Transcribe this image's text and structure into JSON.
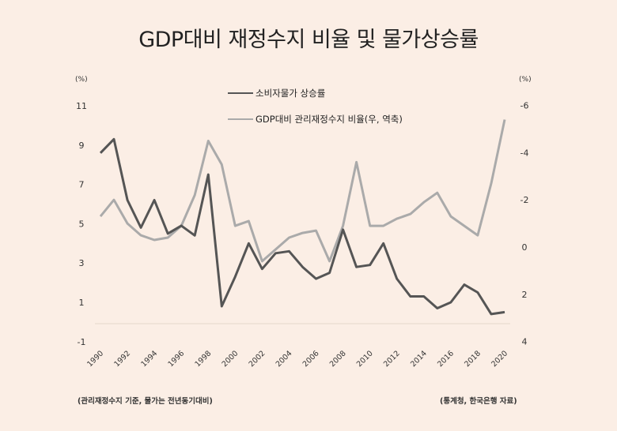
{
  "chart_data": {
    "type": "line",
    "title": "GDP대비 재정수지 비율 및 물가상승률",
    "left_axis": {
      "unit": "(%)",
      "ticks": [
        11,
        9,
        7,
        5,
        3,
        1,
        -1
      ],
      "range": [
        -1,
        11
      ]
    },
    "right_axis": {
      "unit": "(%)",
      "ticks": [
        -6,
        -4,
        -2,
        0,
        2,
        4
      ],
      "range": [
        -6,
        4
      ],
      "inverted": true
    },
    "x_ticks": [
      "1990",
      "1992",
      "1994",
      "1996",
      "1998",
      "2000",
      "2002",
      "2004",
      "2006",
      "2008",
      "2010",
      "2012",
      "2014",
      "2016",
      "2018",
      "2020"
    ],
    "x": [
      1990,
      1991,
      1992,
      1993,
      1994,
      1995,
      1996,
      1997,
      1998,
      1999,
      2000,
      2001,
      2002,
      2003,
      2004,
      2005,
      2006,
      2007,
      2008,
      2009,
      2010,
      2011,
      2012,
      2013,
      2014,
      2015,
      2016,
      2017,
      2018,
      2019,
      2020
    ],
    "series": [
      {
        "name": "소비자물가 상승률",
        "axis": "left",
        "color": "#555555",
        "values": [
          8.6,
          9.3,
          6.2,
          4.8,
          6.2,
          4.5,
          4.9,
          4.4,
          7.5,
          0.8,
          2.3,
          4.0,
          2.7,
          3.5,
          3.6,
          2.8,
          2.2,
          2.5,
          4.7,
          2.8,
          2.9,
          4.0,
          2.2,
          1.3,
          1.3,
          0.7,
          1.0,
          1.9,
          1.5,
          0.4,
          0.5
        ]
      },
      {
        "name": "GDP대비 관리재정수지 비율(우, 역축)",
        "axis": "right",
        "color": "#aaaaaa",
        "values": [
          -1.3,
          -2.0,
          -1.0,
          -0.5,
          -0.3,
          -0.4,
          -0.9,
          -2.2,
          -4.5,
          -3.5,
          -0.9,
          -1.1,
          0.6,
          0.1,
          -0.4,
          -0.6,
          -0.7,
          0.6,
          -0.9,
          -3.6,
          -0.9,
          -0.9,
          -1.2,
          -1.4,
          -1.9,
          -2.3,
          -1.3,
          -0.9,
          -0.5,
          -2.7,
          -5.4
        ]
      }
    ],
    "legend": "top-center",
    "grid": false
  },
  "footnote_left": "(관리재정수지 기준, 물가는 전년동기대비)",
  "footnote_right": "(통계청, 한국은행 자료)"
}
